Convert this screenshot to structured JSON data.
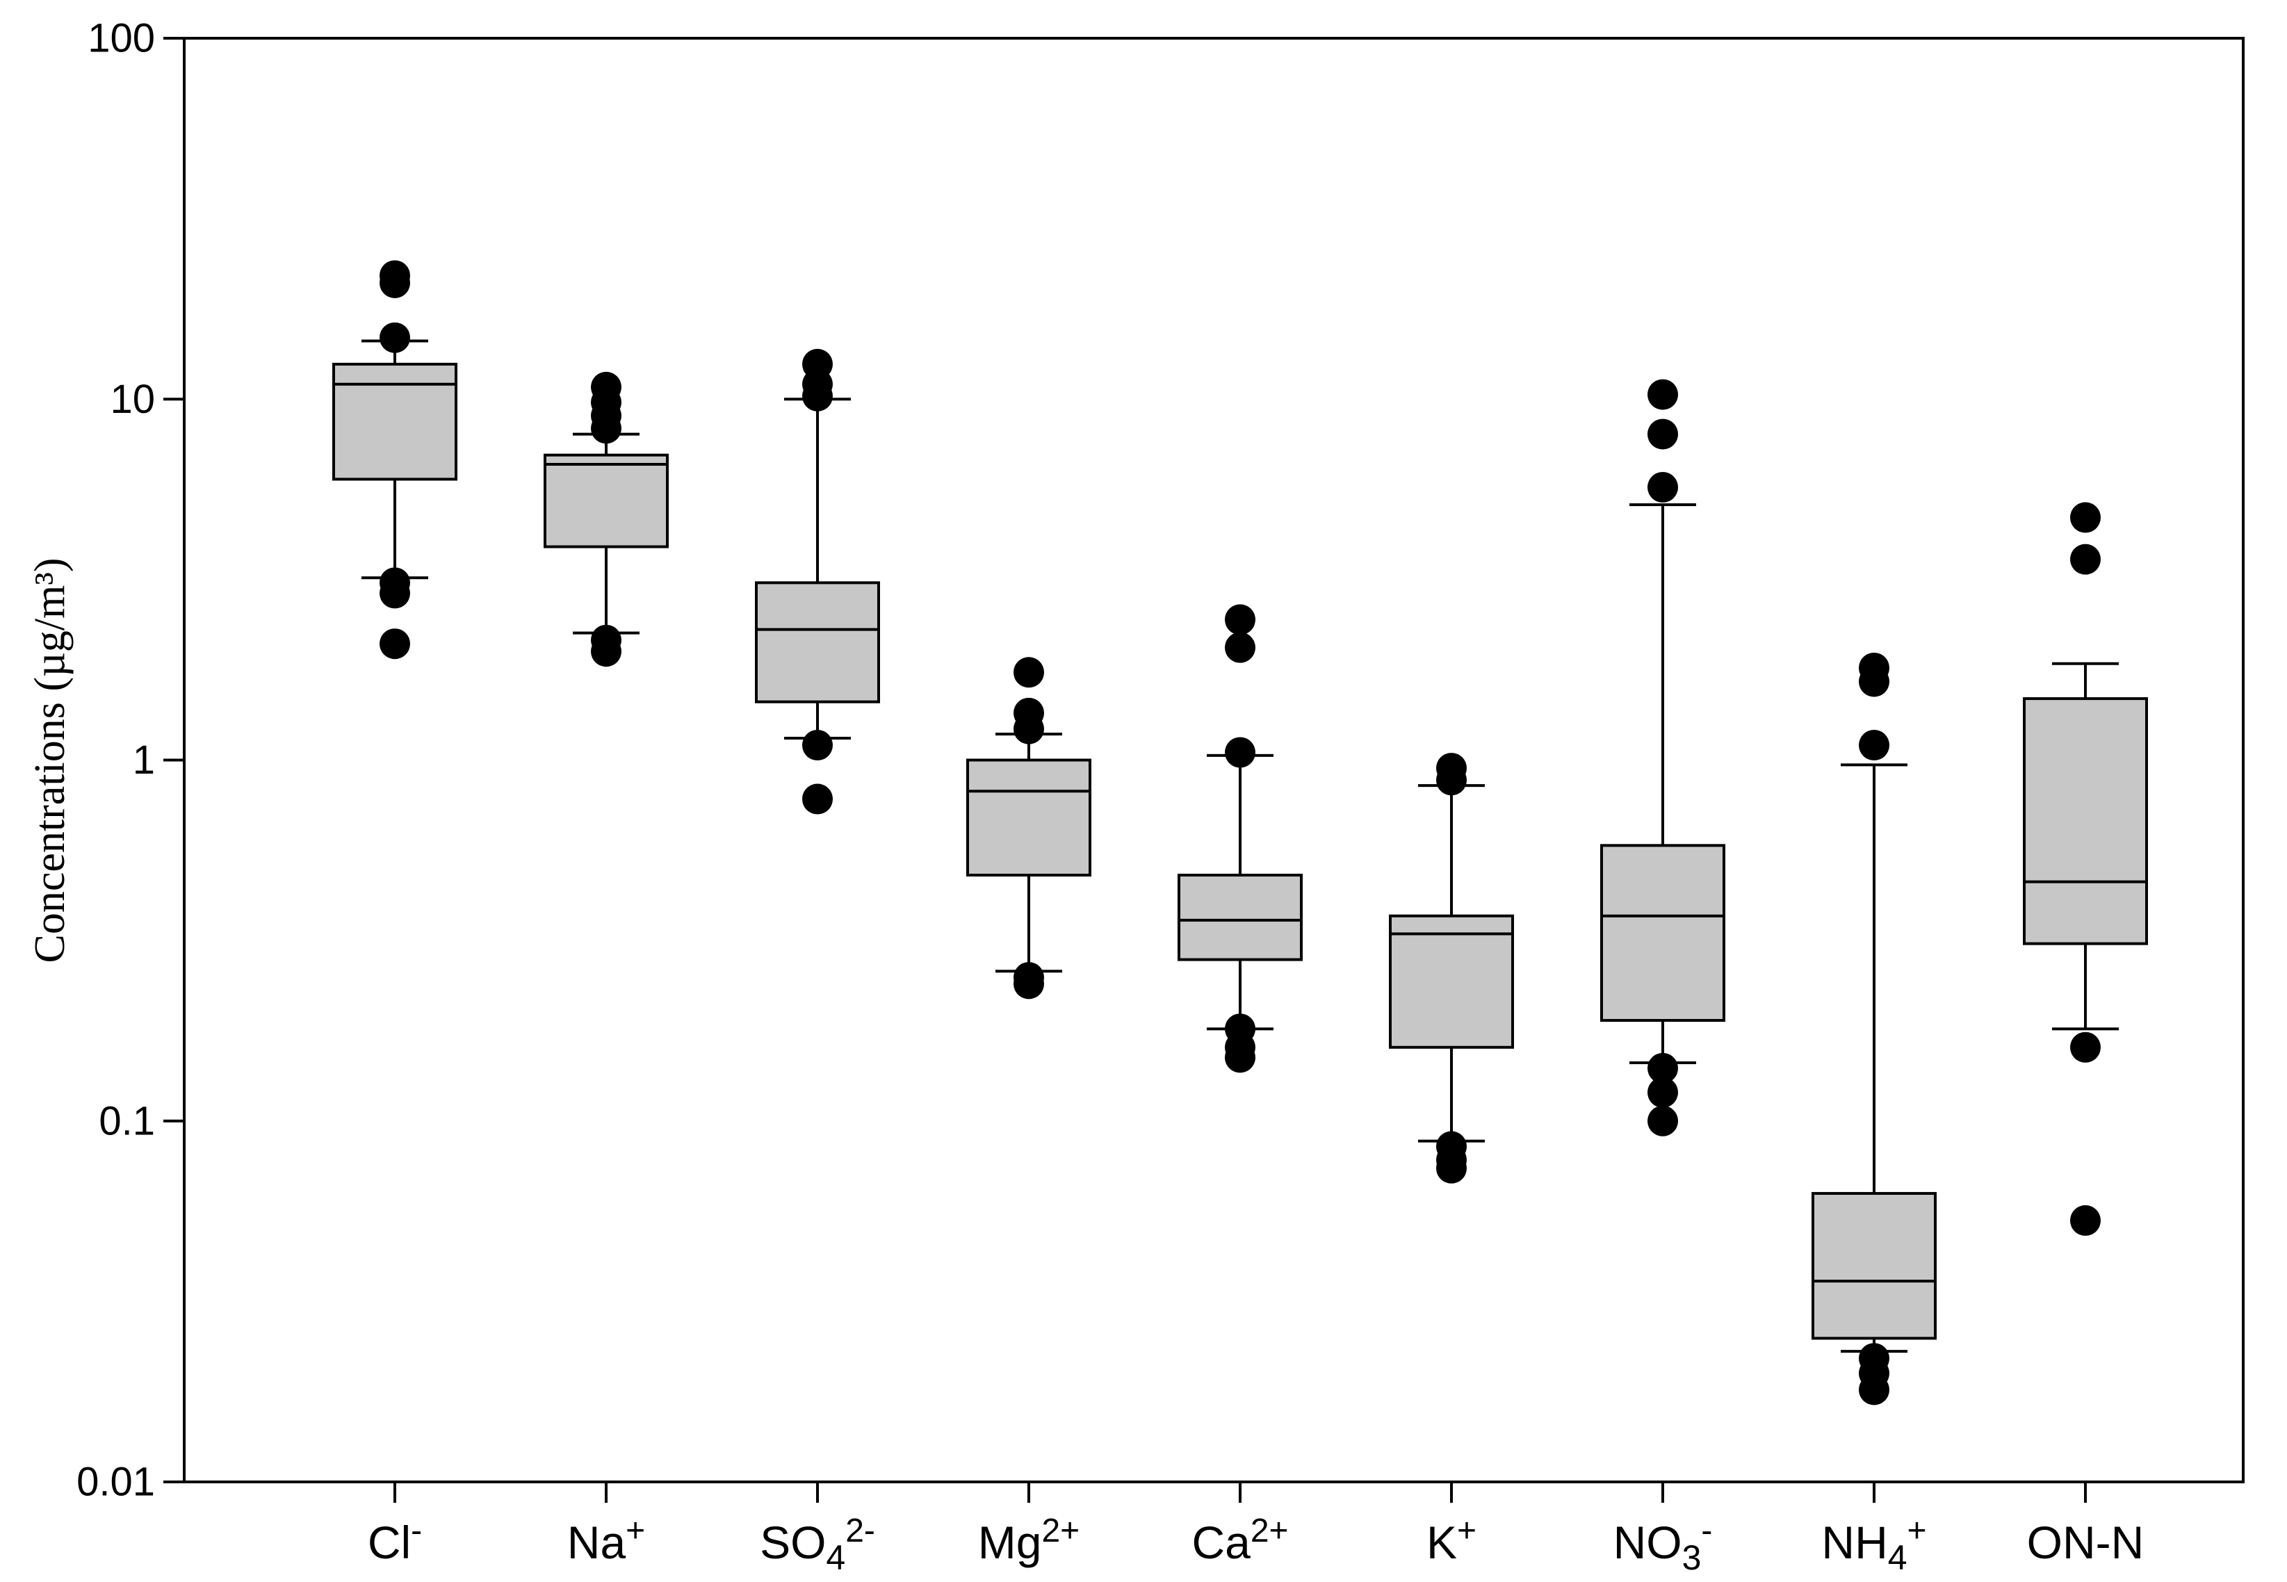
{
  "chart_data": {
    "type": "boxplot",
    "title": "",
    "xlabel": "",
    "ylabel": "Concentrations (µg/m³)",
    "yscale": "log",
    "ylim": [
      0.01,
      100
    ],
    "yticks": [
      {
        "value": 0.01,
        "label": "0.01"
      },
      {
        "value": 0.1,
        "label": "0.1"
      },
      {
        "value": 1,
        "label": "1"
      },
      {
        "value": 10,
        "label": "10"
      },
      {
        "value": 100,
        "label": "100"
      }
    ],
    "grid": false,
    "series": [
      {
        "name": "Cl",
        "sup": "-",
        "sub": "",
        "whisker_low": 3.2,
        "q1": 6.0,
        "median": 11.0,
        "q3": 12.5,
        "whisker_high": 14.5,
        "outliers": [
          21.0,
          22.0,
          14.8,
          3.1,
          2.9,
          2.1
        ]
      },
      {
        "name": "Na",
        "sup": "+",
        "sub": "",
        "whisker_low": 2.25,
        "q1": 3.9,
        "median": 6.6,
        "q3": 7.0,
        "whisker_high": 8.0,
        "outliers": [
          10.8,
          9.8,
          9.0,
          8.3,
          2.15,
          2.0
        ]
      },
      {
        "name": "SO",
        "sup": "2-",
        "sub": "4",
        "whisker_low": 1.15,
        "q1": 1.45,
        "median": 2.3,
        "q3": 3.1,
        "whisker_high": 10.0,
        "outliers": [
          12.5,
          11.0,
          10.2,
          1.1,
          0.78
        ]
      },
      {
        "name": "Mg",
        "sup": "2+",
        "sub": "",
        "whisker_low": 0.26,
        "q1": 0.48,
        "median": 0.82,
        "q3": 1.0,
        "whisker_high": 1.18,
        "outliers": [
          1.75,
          1.35,
          1.22,
          0.25,
          0.24
        ]
      },
      {
        "name": "Ca",
        "sup": "2+",
        "sub": "",
        "whisker_low": 0.18,
        "q1": 0.28,
        "median": 0.36,
        "q3": 0.48,
        "whisker_high": 1.03,
        "outliers": [
          2.45,
          2.05,
          1.05,
          0.18,
          0.16,
          0.15
        ]
      },
      {
        "name": "K",
        "sup": "+",
        "sub": "",
        "whisker_low": 0.088,
        "q1": 0.16,
        "median": 0.33,
        "q3": 0.37,
        "whisker_high": 0.85,
        "outliers": [
          0.95,
          0.88,
          0.085,
          0.078,
          0.074
        ]
      },
      {
        "name": "NO",
        "sup": "-",
        "sub": "3",
        "whisker_low": 0.145,
        "q1": 0.19,
        "median": 0.37,
        "q3": 0.58,
        "whisker_high": 5.1,
        "outliers": [
          10.3,
          8.0,
          5.7,
          0.14,
          0.12,
          0.1
        ]
      },
      {
        "name": "NH",
        "sup": "+",
        "sub": "4",
        "whisker_low": 0.023,
        "q1": 0.025,
        "median": 0.036,
        "q3": 0.063,
        "whisker_high": 0.97,
        "outliers": [
          1.8,
          1.65,
          1.1,
          0.022,
          0.02,
          0.018
        ]
      },
      {
        "name": "ON-N",
        "sup": "",
        "sub": "",
        "whisker_low": 0.18,
        "q1": 0.31,
        "median": 0.46,
        "q3": 1.48,
        "whisker_high": 1.85,
        "outliers": [
          4.7,
          3.6,
          0.16,
          0.053
        ]
      }
    ]
  },
  "colors": {
    "box_fill": "#c7c7c7",
    "line": "#000000",
    "outlier": "#000000",
    "background": "#ffffff"
  }
}
